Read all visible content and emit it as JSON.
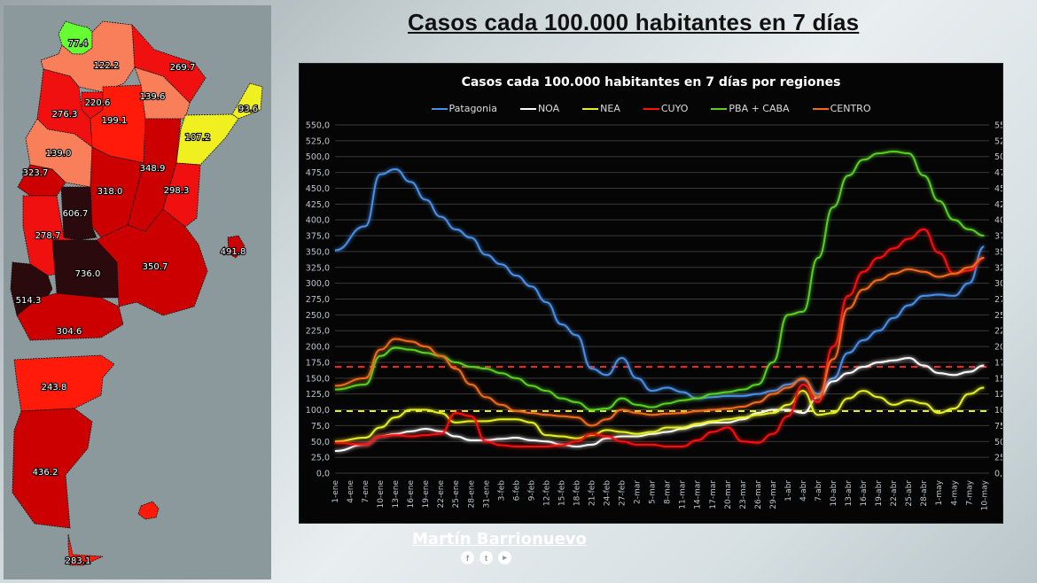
{
  "header": {
    "title": "Casos cada 100.000 habitantes en 7 días"
  },
  "map": {
    "provinces": [
      {
        "name": "Jujuy",
        "value": "77.4",
        "color": "#66ff33"
      },
      {
        "name": "Salta",
        "value": "122.2",
        "color": "#f97f5a"
      },
      {
        "name": "Formosa",
        "value": "269.7",
        "color": "#f01010"
      },
      {
        "name": "Chaco",
        "value": "139.6",
        "color": "#f97f5a"
      },
      {
        "name": "Misiones",
        "value": "93.6",
        "color": "#f0f020"
      },
      {
        "name": "Corrientes",
        "value": "107.2",
        "color": "#f0f020"
      },
      {
        "name": "Tucumán",
        "value": "220.6",
        "color": "#f01010"
      },
      {
        "name": "Catamarca",
        "value": "276.3",
        "color": "#f01010"
      },
      {
        "name": "Santiago del Estero",
        "value": "199.1",
        "color": "#ff1a0a"
      },
      {
        "name": "La Rioja",
        "value": "139.0",
        "color": "#f97f5a"
      },
      {
        "name": "Santa Fe",
        "value": "348.9",
        "color": "#cc0000"
      },
      {
        "name": "Entre Ríos",
        "value": "298.3",
        "color": "#f01010"
      },
      {
        "name": "San Juan",
        "value": "323.7",
        "color": "#cc0000"
      },
      {
        "name": "Córdoba",
        "value": "318.0",
        "color": "#cc0000"
      },
      {
        "name": "San Luis",
        "value": "606.7",
        "color": "#2a0a0c"
      },
      {
        "name": "Mendoza",
        "value": "278.7",
        "color": "#f01010"
      },
      {
        "name": "CABA",
        "value": "491.8",
        "color": "#cc0000"
      },
      {
        "name": "La Pampa",
        "value": "736.0",
        "color": "#2a0a0c"
      },
      {
        "name": "Buenos Aires",
        "value": "350.7",
        "color": "#cc0000"
      },
      {
        "name": "Neuquén",
        "value": "514.3",
        "color": "#2a0a0c"
      },
      {
        "name": "Río Negro",
        "value": "304.6",
        "color": "#cc0000"
      },
      {
        "name": "Chubut",
        "value": "243.8",
        "color": "#ff1a0a"
      },
      {
        "name": "Santa Cruz",
        "value": "436.2",
        "color": "#cc0000"
      },
      {
        "name": "Tierra del Fuego",
        "value": "283.1",
        "color": "#ff1a0a"
      }
    ]
  },
  "chart": {
    "title": "Casos cada 100.000 habitantes en 7 días por regiones",
    "legend": [
      {
        "label": "Patagonia",
        "color": "#4a8fe8"
      },
      {
        "label": "NOA",
        "color": "#ffffff"
      },
      {
        "label": "NEA",
        "color": "#e6f020"
      },
      {
        "label": "CUYO",
        "color": "#ff1010"
      },
      {
        "label": "PBA + CABA",
        "color": "#58d020"
      },
      {
        "label": "CENTRO",
        "color": "#f26a1a"
      }
    ]
  },
  "chart_data": {
    "type": "line",
    "title": "Casos cada 100.000 habitantes en 7 días por regiones",
    "xlabel": "",
    "ylabel": "",
    "ylim": [
      0,
      550
    ],
    "yticks": [
      "0,0",
      "25,0",
      "50,0",
      "75,0",
      "100,0",
      "125,0",
      "150,0",
      "175,0",
      "200,0",
      "225,0",
      "250,0",
      "275,0",
      "300,0",
      "325,0",
      "350,0",
      "375,0",
      "400,0",
      "425,0",
      "450,0",
      "475,0",
      "500,0",
      "525,0",
      "550,0"
    ],
    "x_tick_labels": [
      "1-ene",
      "4-ene",
      "7-ene",
      "10-ene",
      "13-ene",
      "16-ene",
      "19-ene",
      "22-ene",
      "25-ene",
      "28-ene",
      "31-ene",
      "3-feb",
      "6-feb",
      "9-feb",
      "12-feb",
      "15-feb",
      "18-feb",
      "21-feb",
      "24-feb",
      "27-feb",
      "2-mar",
      "5-mar",
      "8-mar",
      "11-mar",
      "14-mar",
      "17-mar",
      "20-mar",
      "23-mar",
      "26-mar",
      "29-mar",
      "1-abr",
      "4-abr",
      "7-abr",
      "10-abr",
      "13-abr",
      "16-abr",
      "19-abr",
      "22-abr",
      "25-abr",
      "28-abr",
      "1-may",
      "4-may",
      "7-may",
      "10-may"
    ],
    "grid": true,
    "legend_position": "top",
    "reference_lines": [
      {
        "value": 168,
        "color": "#ff2020",
        "style": "dashed"
      },
      {
        "value": 98,
        "color": "#e6f020",
        "style": "dashed"
      }
    ],
    "x_days": [
      0,
      6,
      9,
      12,
      15,
      18,
      21,
      24,
      27,
      30,
      33,
      36,
      39,
      42,
      45,
      48,
      51,
      54,
      57,
      60,
      63,
      66,
      69,
      72,
      75,
      78,
      81,
      84,
      87,
      90,
      93,
      96,
      99,
      102,
      105,
      108,
      111,
      114,
      117,
      120,
      123,
      126,
      129
    ],
    "series": [
      {
        "name": "Patagonia",
        "values": [
          352,
          390,
          472,
          480,
          460,
          432,
          405,
          385,
          372,
          345,
          330,
          312,
          295,
          270,
          235,
          218,
          165,
          155,
          182,
          150,
          130,
          135,
          128,
          118,
          120,
          122,
          122,
          125,
          130,
          140,
          148,
          125,
          150,
          190,
          210,
          225,
          245,
          265,
          280,
          282,
          280,
          300,
          358
        ]
      },
      {
        "name": "NOA",
        "values": [
          35,
          45,
          58,
          62,
          66,
          70,
          66,
          58,
          52,
          52,
          54,
          56,
          52,
          50,
          45,
          42,
          45,
          55,
          58,
          58,
          62,
          65,
          70,
          75,
          80,
          80,
          85,
          95,
          100,
          100,
          95,
          120,
          145,
          158,
          168,
          175,
          178,
          182,
          170,
          158,
          155,
          160,
          170
        ]
      },
      {
        "name": "NEA",
        "values": [
          50,
          56,
          72,
          88,
          100,
          100,
          95,
          80,
          82,
          82,
          85,
          85,
          80,
          60,
          58,
          55,
          60,
          68,
          65,
          62,
          65,
          72,
          72,
          78,
          82,
          85,
          88,
          92,
          95,
          108,
          130,
          92,
          95,
          118,
          130,
          120,
          108,
          115,
          110,
          95,
          102,
          125,
          135
        ]
      },
      {
        "name": "CUYO",
        "values": [
          48,
          45,
          58,
          60,
          58,
          60,
          62,
          95,
          90,
          50,
          44,
          42,
          42,
          42,
          44,
          50,
          62,
          58,
          50,
          45,
          45,
          42,
          42,
          52,
          65,
          72,
          50,
          48,
          62,
          90,
          140,
          112,
          200,
          280,
          318,
          340,
          355,
          370,
          385,
          348,
          315,
          320,
          340
        ]
      },
      {
        "name": "PBA + CABA",
        "values": [
          132,
          140,
          185,
          198,
          195,
          190,
          185,
          175,
          168,
          165,
          158,
          150,
          138,
          130,
          118,
          112,
          100,
          102,
          118,
          108,
          104,
          110,
          115,
          118,
          125,
          128,
          132,
          140,
          175,
          250,
          255,
          340,
          420,
          470,
          495,
          505,
          508,
          505,
          470,
          430,
          400,
          385,
          375
        ]
      },
      {
        "name": "CENTRO",
        "values": [
          138,
          150,
          195,
          212,
          208,
          200,
          185,
          165,
          140,
          120,
          108,
          98,
          95,
          92,
          90,
          88,
          75,
          85,
          100,
          95,
          92,
          94,
          95,
          98,
          100,
          102,
          105,
          112,
          125,
          135,
          150,
          120,
          180,
          260,
          290,
          305,
          315,
          322,
          318,
          310,
          315,
          325,
          340
        ]
      }
    ]
  },
  "footer": {
    "author": "Martín Barrionuevo",
    "socials": [
      {
        "name": "facebook",
        "glyph": "f"
      },
      {
        "name": "twitter",
        "glyph": "t"
      },
      {
        "name": "youtube",
        "glyph": "▸"
      }
    ]
  }
}
